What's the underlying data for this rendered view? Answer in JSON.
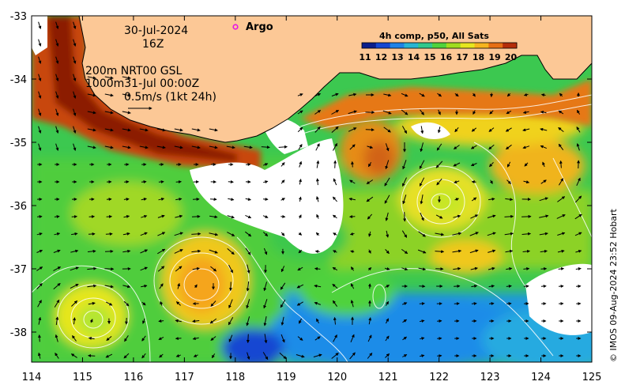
{
  "map": {
    "date": "30-Jul-2024",
    "hour": "16Z",
    "platform_legend": "Argo",
    "colorbar": {
      "title": "4h comp, p50, All Sats",
      "labels": [
        "11",
        "12",
        "13",
        "14",
        "15",
        "16",
        "17",
        "18",
        "19",
        "20"
      ],
      "colors": [
        "#0a1e8c",
        "#1446d2",
        "#1e82e6",
        "#28b4d2",
        "#32c88c",
        "#50d23c",
        "#a0dc1e",
        "#e6e61e",
        "#f5b41e",
        "#e66e14",
        "#b42d0a"
      ]
    },
    "current_info": {
      "line1": "200m  NRT00 GSL",
      "line2": "1000m31-Jul 00:00Z",
      "line3": "0.5m/s (1kt 24h)"
    },
    "credit": "© IMOS 09-Aug-2024 23:52 Hobart",
    "lon_ticks": [
      "114",
      "115",
      "116",
      "117",
      "118",
      "119",
      "120",
      "121",
      "122",
      "123",
      "124",
      "125"
    ],
    "lat_ticks": [
      "-33",
      "-34",
      "-35",
      "-36",
      "-37",
      "-38"
    ],
    "land_color": "#fcc896"
  }
}
